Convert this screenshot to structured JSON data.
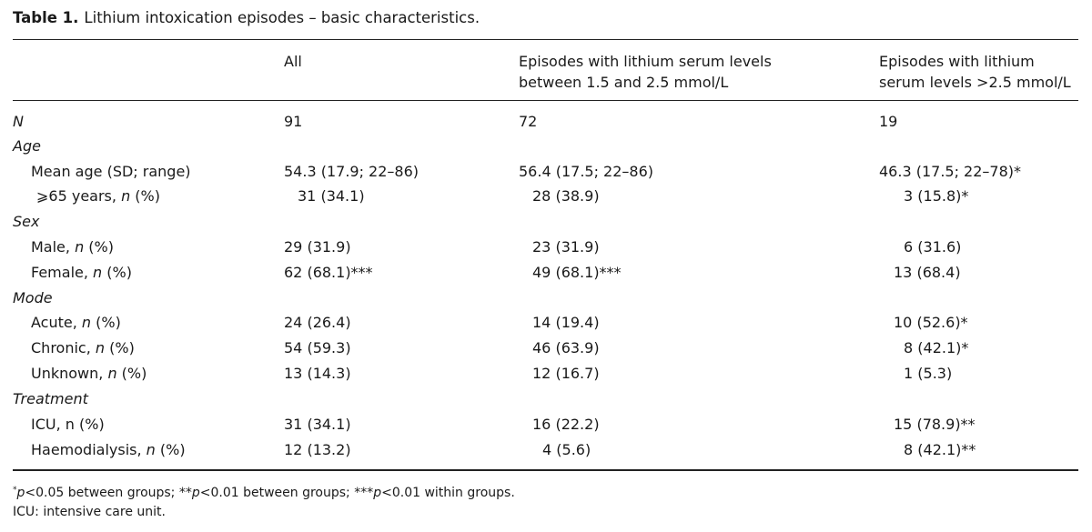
{
  "caption": {
    "label": "Table 1.",
    "text": "Lithium intoxication episodes – basic characteristics."
  },
  "columns": {
    "all": "All",
    "mid_line1": "Episodes with lithium serum levels",
    "mid_line2": "between 1.5 and 2.5 mmol/L",
    "high_line1": "Episodes with lithium",
    "high_line2": "serum levels >2.5 mmol/L"
  },
  "rows": {
    "n": {
      "label": "N",
      "all": "91",
      "mid": "72",
      "high": "19"
    },
    "age": {
      "label": "Age"
    },
    "mean_age": {
      "label": "Mean age (SD; range)",
      "all": "54.3 (17.9; 22–86)",
      "mid": "56.4 (17.5; 22–86)",
      "high": "46.3 (17.5; 22–78)*"
    },
    "age65": {
      "label_pre": "⩾65 years, ",
      "label_n": "n",
      "label_post": " (%)",
      "all": "31 (34.1)",
      "mid": "28 (38.9)",
      "high": "3 (15.8)*"
    },
    "sex": {
      "label": "Sex"
    },
    "male": {
      "label_pre": "Male, ",
      "label_n": "n",
      "label_post": " (%)",
      "all": "29 (31.9)",
      "mid": "23 (31.9)",
      "high": "6 (31.6)"
    },
    "female": {
      "label_pre": "Female, ",
      "label_n": "n",
      "label_post": " (%)",
      "all": "62 (68.1)***",
      "mid": "49 (68.1)***",
      "high": "13 (68.4)"
    },
    "mode": {
      "label": "Mode"
    },
    "acute": {
      "label_pre": "Acute, ",
      "label_n": "n",
      "label_post": " (%)",
      "all": "24 (26.4)",
      "mid": "14 (19.4)",
      "high": "10 (52.6)*"
    },
    "chronic": {
      "label_pre": "Chronic, ",
      "label_n": "n",
      "label_post": " (%)",
      "all": "54 (59.3)",
      "mid": "46 (63.9)",
      "high": "8 (42.1)*"
    },
    "unknown": {
      "label_pre": "Unknown, ",
      "label_n": "n",
      "label_post": " (%)",
      "all": "13 (14.3)",
      "mid": "12 (16.7)",
      "high": "1 (5.3)"
    },
    "treatment": {
      "label": "Treatment"
    },
    "icu": {
      "label": "ICU, n (%)",
      "all": "31 (34.1)",
      "mid": "16 (22.2)",
      "high": "15 (78.9)**"
    },
    "haemo": {
      "label_pre": "Haemodialysis, ",
      "label_n": "n",
      "label_post": " (%)",
      "all": "12 (13.2)",
      "mid": "4 (5.6)",
      "high": "8 (42.1)**"
    }
  },
  "footnotes": {
    "star": "*",
    "p1": "p",
    "t1": "<0.05 between groups; **",
    "p2": "p",
    "t2": "<0.01 between groups; ***",
    "p3": "p",
    "t3": "<0.01 within groups.",
    "icu": "ICU: intensive care unit."
  }
}
